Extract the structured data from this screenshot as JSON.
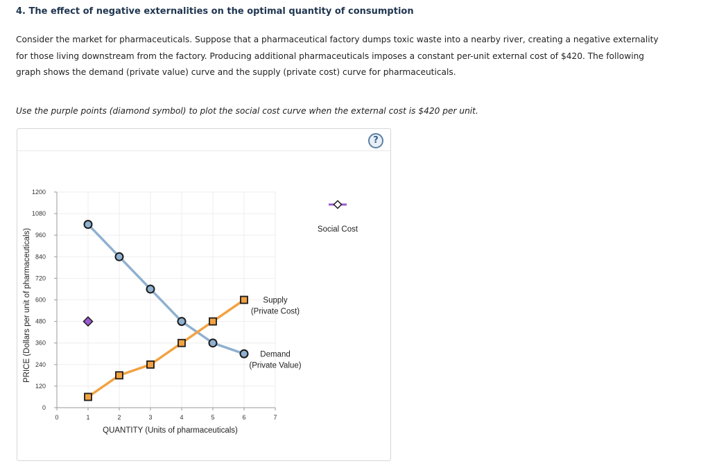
{
  "question": {
    "title": "4. The effect of negative externalities on the optimal quantity of consumption",
    "body_line1": "Consider the market for pharmaceuticals. Suppose that a pharmaceutical factory dumps toxic waste into a nearby river, creating a negative externality",
    "body_line2": "for those living downstream from the factory. Producing additional pharmaceuticals imposes a constant per-unit external cost of $420. The following",
    "body_line3": "graph shows the demand (private value) curve and the supply (private cost) curve for pharmaceuticals.",
    "instruction": "Use the purple points (diamond symbol) to plot the social cost curve when the external cost is $420 per unit."
  },
  "help": {
    "label": "?"
  },
  "colors": {
    "demand": "#8fb0d0",
    "demand_fill": "#8fb0d0",
    "supply": "#f2a241",
    "supply_fill": "#f2a241",
    "social": "#9b59d0",
    "grid": "#eeeeee",
    "axis": "#999999"
  },
  "chart_data": {
    "type": "line",
    "xlabel": "QUANTITY (Units of pharmaceuticals)",
    "ylabel": "PRICE (Dollars per unit of pharmaceuticals)",
    "xlim": [
      0,
      7
    ],
    "ylim": [
      0,
      1200
    ],
    "x_ticks": [
      "0",
      "1",
      "2",
      "3",
      "4",
      "5",
      "6",
      "7"
    ],
    "y_ticks": [
      "0",
      "120",
      "240",
      "360",
      "480",
      "600",
      "720",
      "840",
      "960",
      "1080",
      "1200"
    ],
    "series": [
      {
        "name": "Demand",
        "label_line1": "Demand",
        "label_line2": "(Private Value)",
        "x": [
          1,
          2,
          3,
          4,
          5,
          6
        ],
        "y": [
          1020,
          840,
          660,
          480,
          360,
          300
        ]
      },
      {
        "name": "Supply",
        "label_line1": "Supply",
        "label_line2": "(Private Cost)",
        "x": [
          1,
          2,
          3,
          4,
          5,
          6
        ],
        "y": [
          60,
          180,
          240,
          360,
          480,
          600
        ]
      }
    ],
    "social_cost_point": {
      "x": 1,
      "y": 480
    },
    "legend": {
      "label": "Social Cost",
      "position": "right"
    }
  }
}
